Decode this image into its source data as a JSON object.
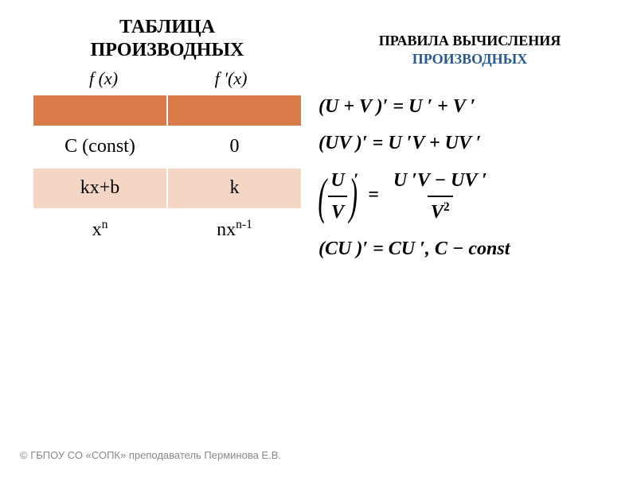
{
  "left": {
    "title_line1": "ТАБЛИЦА",
    "title_line2": "ПРОИЗВОДНЫХ",
    "header_fx": "f (x)",
    "header_fpx": "f ′(x)",
    "rows": [
      {
        "fx": "C (const)",
        "fpx": "0"
      },
      {
        "fx": "kx+b",
        "fpx": "k"
      }
    ],
    "power_row": {
      "fx_base": "x",
      "fx_exp": "n",
      "fpx_coef": "n",
      "fpx_base": "x",
      "fpx_exp": "n-1"
    }
  },
  "right": {
    "title_line1": "ПРАВИЛА ВЫЧИСЛЕНИЯ",
    "title_line2": "ПРОИЗВОДНЫХ",
    "rule1": "(U + V )′ = U ′ + V ′",
    "rule2": "(UV )′ = U ′V + UV ′",
    "rule3": {
      "left_num": "U",
      "left_den": "V",
      "right_num": "U ′V − UV ′",
      "right_den_base": "V",
      "right_den_exp": "2"
    },
    "rule4": "(CU )′ = CU ′, C − const"
  },
  "footer": "© ГБПОУ СО «СОПК» преподаватель Перминова Е.В.",
  "colors": {
    "header_orange": "#d87a4a",
    "row_peach": "#f5d5c4",
    "title_blue": "#2a5a8a",
    "footer_gray": "#888888"
  }
}
